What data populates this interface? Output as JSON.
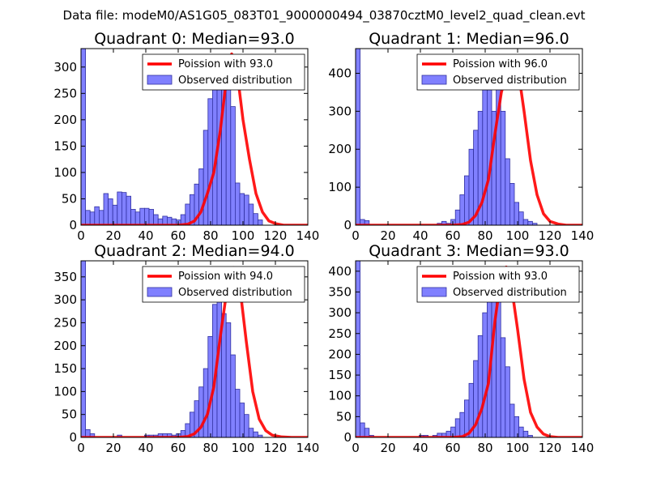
{
  "figure": {
    "suptitle": "Data file: modeM0/AS1G05_083T01_9000000494_03870cztM0_level2_quad_clean.evt"
  },
  "colors": {
    "bar_fill": "#8080ff",
    "bar_stroke": "#3030a0",
    "poisson_line": "#ff0000",
    "axes": "#000000",
    "background": "#ffffff"
  },
  "chart_data": [
    {
      "type": "bar",
      "title": "Quadrant 0: Median=93.0",
      "xlim": [
        0,
        140
      ],
      "ylim": [
        0,
        335
      ],
      "xticks": [
        0,
        20,
        40,
        60,
        80,
        100,
        120,
        140
      ],
      "yticks": [
        0,
        50,
        100,
        150,
        200,
        250,
        300
      ],
      "bin_width": 2.8,
      "legend_location": "top-right",
      "series": [
        {
          "name": "Observed distribution",
          "kind": "histogram",
          "values": [
            335,
            28,
            25,
            35,
            28,
            60,
            50,
            38,
            63,
            62,
            55,
            30,
            25,
            32,
            32,
            30,
            20,
            12,
            17,
            15,
            12,
            10,
            20,
            40,
            58,
            78,
            107,
            180,
            240,
            280,
            310,
            268,
            287,
            225,
            80,
            60,
            57,
            40,
            22,
            10
          ]
        },
        {
          "name": "Poission with 93.0",
          "kind": "line",
          "x": [
            0,
            60,
            66,
            70,
            74,
            78,
            82,
            86,
            90,
            93,
            96,
            100,
            104,
            108,
            112,
            116,
            120,
            125,
            130,
            140
          ],
          "y": [
            0,
            0,
            2,
            8,
            25,
            60,
            100,
            180,
            283,
            325,
            300,
            200,
            125,
            60,
            25,
            8,
            3,
            0,
            0,
            0
          ]
        }
      ]
    },
    {
      "type": "bar",
      "title": "Quadrant 1: Median=96.0",
      "xlim": [
        0,
        140
      ],
      "ylim": [
        0,
        465
      ],
      "xticks": [
        0,
        20,
        40,
        60,
        80,
        100,
        120,
        140
      ],
      "yticks": [
        0,
        100,
        200,
        300,
        400
      ],
      "bin_width": 2.8,
      "legend_location": "top-right",
      "series": [
        {
          "name": "Observed distribution",
          "kind": "histogram",
          "values": [
            465,
            15,
            12,
            0,
            0,
            0,
            0,
            0,
            0,
            0,
            0,
            0,
            0,
            0,
            0,
            0,
            0,
            0,
            5,
            10,
            5,
            15,
            40,
            80,
            130,
            200,
            250,
            300,
            360,
            380,
            300,
            360,
            300,
            175,
            110,
            60,
            35,
            15,
            10,
            5
          ]
        },
        {
          "name": "Poission with 96.0",
          "kind": "line",
          "x": [
            0,
            60,
            66,
            70,
            74,
            78,
            82,
            86,
            90,
            96,
            100,
            104,
            108,
            112,
            116,
            120,
            125,
            130,
            140
          ],
          "y": [
            0,
            0,
            2,
            8,
            25,
            60,
            120,
            240,
            350,
            440,
            420,
            300,
            170,
            80,
            30,
            10,
            3,
            0,
            0
          ]
        }
      ]
    },
    {
      "type": "bar",
      "title": "Quadrant 2: Median=94.0",
      "xlim": [
        0,
        140
      ],
      "ylim": [
        0,
        385
      ],
      "xticks": [
        0,
        20,
        40,
        60,
        80,
        100,
        120,
        140
      ],
      "yticks": [
        0,
        50,
        100,
        150,
        200,
        250,
        300,
        350
      ],
      "bin_width": 2.8,
      "legend_location": "top-right",
      "series": [
        {
          "name": "Observed distribution",
          "kind": "histogram",
          "values": [
            385,
            17,
            8,
            0,
            0,
            0,
            0,
            0,
            5,
            0,
            0,
            0,
            0,
            0,
            5,
            5,
            5,
            8,
            8,
            8,
            5,
            8,
            15,
            30,
            55,
            80,
            110,
            150,
            220,
            290,
            310,
            270,
            250,
            180,
            105,
            75,
            50,
            20,
            12,
            5
          ]
        },
        {
          "name": "Poission with 94.0",
          "kind": "line",
          "x": [
            0,
            60,
            66,
            70,
            74,
            78,
            82,
            86,
            90,
            94,
            98,
            102,
            106,
            110,
            114,
            118,
            124,
            130,
            140
          ],
          "y": [
            0,
            0,
            2,
            8,
            22,
            50,
            110,
            220,
            320,
            370,
            330,
            210,
            100,
            40,
            15,
            5,
            1,
            0,
            0
          ]
        }
      ]
    },
    {
      "type": "bar",
      "title": "Quadrant 3: Median=93.0",
      "xlim": [
        0,
        140
      ],
      "ylim": [
        0,
        425
      ],
      "xticks": [
        0,
        20,
        40,
        60,
        80,
        100,
        120,
        140
      ],
      "yticks": [
        0,
        50,
        100,
        150,
        200,
        250,
        300,
        350,
        400
      ],
      "bin_width": 2.8,
      "legend_location": "top-right",
      "series": [
        {
          "name": "Observed distribution",
          "kind": "histogram",
          "values": [
            425,
            35,
            22,
            5,
            0,
            0,
            0,
            0,
            0,
            0,
            0,
            0,
            0,
            0,
            5,
            5,
            0,
            5,
            10,
            10,
            15,
            25,
            45,
            60,
            90,
            130,
            185,
            245,
            300,
            385,
            380,
            330,
            240,
            170,
            80,
            50,
            25,
            15,
            5,
            0
          ]
        },
        {
          "name": "Poission with 93.0",
          "kind": "line",
          "x": [
            0,
            60,
            66,
            70,
            74,
            78,
            82,
            86,
            90,
            93,
            96,
            100,
            104,
            108,
            112,
            116,
            120,
            125,
            130,
            140
          ],
          "y": [
            0,
            0,
            2,
            10,
            30,
            70,
            130,
            280,
            390,
            410,
            370,
            260,
            140,
            60,
            25,
            8,
            2,
            0,
            0,
            0
          ]
        }
      ]
    }
  ]
}
